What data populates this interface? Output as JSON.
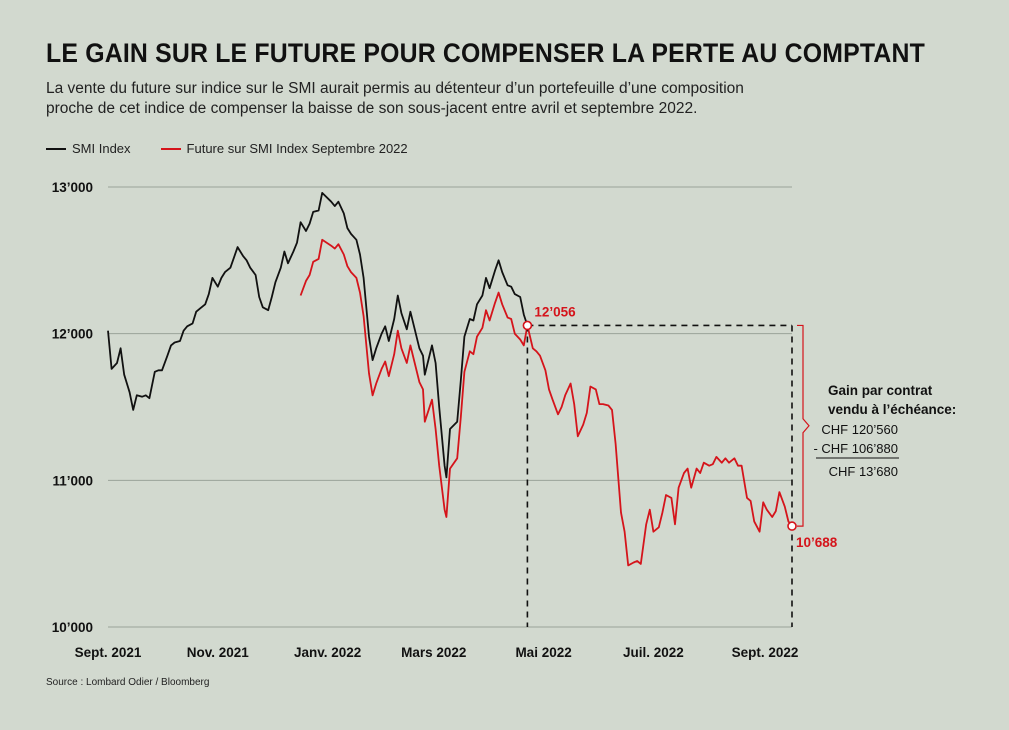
{
  "title": "LE GAIN SUR LE FUTURE POUR COMPENSER LA PERTE AU COMPTANT",
  "subtitle": "La vente du future sur indice sur le SMI aurait permis au détenteur d’un portefeuille d’une composition proche de cet indice de compenser la baisse de son sous-jacent entre avril et septembre 2022.",
  "source": "Source : Lombard Odier / Bloomberg",
  "colors": {
    "smi": "#111111",
    "future": "#d5141b",
    "grid": "#9aa39a",
    "background": "#d2d9cf"
  },
  "chart_data": {
    "type": "line",
    "title": "LE GAIN SUR LE FUTURE POUR COMPENSER LA PERTE AU COMPTANT",
    "xlabel": "",
    "ylabel": "",
    "ylim": [
      10000,
      13000
    ],
    "yticks": [
      10000,
      11000,
      12000,
      13000
    ],
    "ytick_labels": [
      "10’000",
      "11’000",
      "12’000",
      "13’000"
    ],
    "xticks": [
      "2021-09-01",
      "2021-11-01",
      "2022-01-01",
      "2022-03-01",
      "2022-05-01",
      "2022-07-01",
      "2022-09-01"
    ],
    "xtick_labels": [
      "Sept. 2021",
      "Nov. 2021",
      "Janv. 2022",
      "Mars 2022",
      "Mai 2022",
      "Juil. 2022",
      "Sept. 2022"
    ],
    "xlim": [
      "2021-09-01",
      "2022-09-16"
    ],
    "grid": true,
    "legend": "top-left",
    "series": [
      {
        "name": "SMI Index",
        "color": "#111111",
        "points": [
          [
            "2021-09-01",
            12020
          ],
          [
            "2021-09-03",
            11760
          ],
          [
            "2021-09-06",
            11800
          ],
          [
            "2021-09-08",
            11900
          ],
          [
            "2021-09-10",
            11720
          ],
          [
            "2021-09-13",
            11600
          ],
          [
            "2021-09-15",
            11480
          ],
          [
            "2021-09-17",
            11580
          ],
          [
            "2021-09-20",
            11570
          ],
          [
            "2021-09-22",
            11580
          ],
          [
            "2021-09-24",
            11560
          ],
          [
            "2021-09-27",
            11740
          ],
          [
            "2021-09-29",
            11750
          ],
          [
            "2021-10-01",
            11750
          ],
          [
            "2021-10-04",
            11850
          ],
          [
            "2021-10-06",
            11920
          ],
          [
            "2021-10-08",
            11940
          ],
          [
            "2021-10-11",
            11950
          ],
          [
            "2021-10-13",
            12020
          ],
          [
            "2021-10-15",
            12050
          ],
          [
            "2021-10-18",
            12070
          ],
          [
            "2021-10-20",
            12150
          ],
          [
            "2021-10-22",
            12170
          ],
          [
            "2021-10-25",
            12200
          ],
          [
            "2021-10-27",
            12270
          ],
          [
            "2021-10-29",
            12380
          ],
          [
            "2021-11-01",
            12320
          ],
          [
            "2021-11-03",
            12380
          ],
          [
            "2021-11-05",
            12420
          ],
          [
            "2021-11-08",
            12450
          ],
          [
            "2021-11-10",
            12520
          ],
          [
            "2021-11-12",
            12590
          ],
          [
            "2021-11-15",
            12530
          ],
          [
            "2021-11-17",
            12500
          ],
          [
            "2021-11-19",
            12450
          ],
          [
            "2021-11-22",
            12400
          ],
          [
            "2021-11-24",
            12250
          ],
          [
            "2021-11-26",
            12180
          ],
          [
            "2021-11-29",
            12160
          ],
          [
            "2021-12-01",
            12250
          ],
          [
            "2021-12-03",
            12350
          ],
          [
            "2021-12-06",
            12450
          ],
          [
            "2021-12-08",
            12560
          ],
          [
            "2021-12-10",
            12480
          ],
          [
            "2021-12-13",
            12560
          ],
          [
            "2021-12-15",
            12620
          ],
          [
            "2021-12-17",
            12760
          ],
          [
            "2021-12-20",
            12700
          ],
          [
            "2021-12-22",
            12750
          ],
          [
            "2021-12-24",
            12830
          ],
          [
            "2021-12-27",
            12840
          ],
          [
            "2021-12-29",
            12960
          ],
          [
            "2022-01-03",
            12900
          ],
          [
            "2022-01-05",
            12870
          ],
          [
            "2022-01-07",
            12900
          ],
          [
            "2022-01-10",
            12820
          ],
          [
            "2022-01-12",
            12720
          ],
          [
            "2022-01-14",
            12680
          ],
          [
            "2022-01-17",
            12640
          ],
          [
            "2022-01-19",
            12540
          ],
          [
            "2022-01-21",
            12380
          ],
          [
            "2022-01-24",
            11980
          ],
          [
            "2022-01-26",
            11820
          ],
          [
            "2022-01-28",
            11900
          ],
          [
            "2022-01-31",
            12000
          ],
          [
            "2022-02-02",
            12050
          ],
          [
            "2022-02-04",
            11950
          ],
          [
            "2022-02-07",
            12100
          ],
          [
            "2022-02-09",
            12260
          ],
          [
            "2022-02-11",
            12140
          ],
          [
            "2022-02-14",
            12030
          ],
          [
            "2022-02-16",
            12150
          ],
          [
            "2022-02-18",
            12050
          ],
          [
            "2022-02-21",
            11900
          ],
          [
            "2022-02-23",
            11850
          ],
          [
            "2022-02-24",
            11720
          ],
          [
            "2022-02-28",
            11920
          ],
          [
            "2022-03-02",
            11800
          ],
          [
            "2022-03-04",
            11500
          ],
          [
            "2022-03-07",
            11100
          ],
          [
            "2022-03-08",
            11020
          ],
          [
            "2022-03-10",
            11350
          ],
          [
            "2022-03-14",
            11400
          ],
          [
            "2022-03-16",
            11680
          ],
          [
            "2022-03-18",
            11980
          ],
          [
            "2022-03-21",
            12100
          ],
          [
            "2022-03-23",
            12090
          ],
          [
            "2022-03-25",
            12200
          ],
          [
            "2022-03-28",
            12260
          ],
          [
            "2022-03-30",
            12380
          ],
          [
            "2022-04-01",
            12310
          ],
          [
            "2022-04-04",
            12430
          ],
          [
            "2022-04-06",
            12500
          ],
          [
            "2022-04-08",
            12420
          ],
          [
            "2022-04-11",
            12330
          ],
          [
            "2022-04-13",
            12320
          ],
          [
            "2022-04-15",
            12270
          ],
          [
            "2022-04-18",
            12250
          ],
          [
            "2022-04-20",
            12130
          ],
          [
            "2022-04-22",
            12056
          ]
        ]
      },
      {
        "name": "Future sur SMI Index Septembre 2022",
        "color": "#d5141b",
        "points": [
          [
            "2021-12-17",
            12260
          ],
          [
            "2021-12-20",
            12360
          ],
          [
            "2021-12-22",
            12400
          ],
          [
            "2021-12-24",
            12490
          ],
          [
            "2021-12-27",
            12510
          ],
          [
            "2021-12-29",
            12640
          ],
          [
            "2022-01-03",
            12600
          ],
          [
            "2022-01-05",
            12580
          ],
          [
            "2022-01-07",
            12610
          ],
          [
            "2022-01-10",
            12540
          ],
          [
            "2022-01-12",
            12460
          ],
          [
            "2022-01-14",
            12420
          ],
          [
            "2022-01-17",
            12380
          ],
          [
            "2022-01-19",
            12280
          ],
          [
            "2022-01-21",
            12120
          ],
          [
            "2022-01-24",
            11730
          ],
          [
            "2022-01-26",
            11580
          ],
          [
            "2022-01-28",
            11660
          ],
          [
            "2022-01-31",
            11760
          ],
          [
            "2022-02-02",
            11810
          ],
          [
            "2022-02-04",
            11710
          ],
          [
            "2022-02-07",
            11860
          ],
          [
            "2022-02-09",
            12020
          ],
          [
            "2022-02-11",
            11900
          ],
          [
            "2022-02-14",
            11800
          ],
          [
            "2022-02-16",
            11920
          ],
          [
            "2022-02-18",
            11820
          ],
          [
            "2022-02-21",
            11670
          ],
          [
            "2022-02-23",
            11620
          ],
          [
            "2022-02-24",
            11400
          ],
          [
            "2022-02-28",
            11550
          ],
          [
            "2022-03-02",
            11350
          ],
          [
            "2022-03-04",
            11100
          ],
          [
            "2022-03-07",
            10800
          ],
          [
            "2022-03-08",
            10750
          ],
          [
            "2022-03-10",
            11080
          ],
          [
            "2022-03-14",
            11150
          ],
          [
            "2022-03-16",
            11430
          ],
          [
            "2022-03-18",
            11740
          ],
          [
            "2022-03-21",
            11880
          ],
          [
            "2022-03-23",
            11860
          ],
          [
            "2022-03-25",
            11980
          ],
          [
            "2022-03-28",
            12040
          ],
          [
            "2022-03-30",
            12160
          ],
          [
            "2022-04-01",
            12090
          ],
          [
            "2022-04-04",
            12210
          ],
          [
            "2022-04-06",
            12280
          ],
          [
            "2022-04-08",
            12200
          ],
          [
            "2022-04-11",
            12110
          ],
          [
            "2022-04-13",
            12100
          ],
          [
            "2022-04-15",
            12000
          ],
          [
            "2022-04-18",
            11960
          ],
          [
            "2022-04-20",
            11920
          ],
          [
            "2022-04-22",
            12056
          ],
          [
            "2022-04-25",
            11900
          ],
          [
            "2022-04-27",
            11880
          ],
          [
            "2022-04-29",
            11850
          ],
          [
            "2022-05-02",
            11750
          ],
          [
            "2022-05-04",
            11620
          ],
          [
            "2022-05-06",
            11550
          ],
          [
            "2022-05-09",
            11450
          ],
          [
            "2022-05-11",
            11500
          ],
          [
            "2022-05-13",
            11580
          ],
          [
            "2022-05-16",
            11660
          ],
          [
            "2022-05-18",
            11520
          ],
          [
            "2022-05-20",
            11300
          ],
          [
            "2022-05-23",
            11380
          ],
          [
            "2022-05-25",
            11460
          ],
          [
            "2022-05-27",
            11640
          ],
          [
            "2022-05-30",
            11620
          ],
          [
            "2022-06-01",
            11520
          ],
          [
            "2022-06-03",
            11520
          ],
          [
            "2022-06-06",
            11510
          ],
          [
            "2022-06-08",
            11480
          ],
          [
            "2022-06-10",
            11250
          ],
          [
            "2022-06-13",
            10780
          ],
          [
            "2022-06-15",
            10650
          ],
          [
            "2022-06-17",
            10420
          ],
          [
            "2022-06-20",
            10440
          ],
          [
            "2022-06-22",
            10450
          ],
          [
            "2022-06-24",
            10430
          ],
          [
            "2022-06-27",
            10700
          ],
          [
            "2022-06-29",
            10800
          ],
          [
            "2022-07-01",
            10650
          ],
          [
            "2022-07-04",
            10680
          ],
          [
            "2022-07-06",
            10780
          ],
          [
            "2022-07-08",
            10900
          ],
          [
            "2022-07-11",
            10880
          ],
          [
            "2022-07-13",
            10700
          ],
          [
            "2022-07-15",
            10950
          ],
          [
            "2022-07-18",
            11050
          ],
          [
            "2022-07-20",
            11080
          ],
          [
            "2022-07-22",
            10950
          ],
          [
            "2022-07-25",
            11080
          ],
          [
            "2022-07-27",
            11050
          ],
          [
            "2022-07-29",
            11120
          ],
          [
            "2022-08-01",
            11100
          ],
          [
            "2022-08-03",
            11110
          ],
          [
            "2022-08-05",
            11160
          ],
          [
            "2022-08-08",
            11120
          ],
          [
            "2022-08-10",
            11150
          ],
          [
            "2022-08-12",
            11120
          ],
          [
            "2022-08-15",
            11150
          ],
          [
            "2022-08-17",
            11100
          ],
          [
            "2022-08-19",
            11100
          ],
          [
            "2022-08-22",
            10880
          ],
          [
            "2022-08-24",
            10860
          ],
          [
            "2022-08-26",
            10720
          ],
          [
            "2022-08-29",
            10650
          ],
          [
            "2022-08-31",
            10850
          ],
          [
            "2022-09-02",
            10800
          ],
          [
            "2022-09-05",
            10750
          ],
          [
            "2022-09-07",
            10790
          ],
          [
            "2022-09-09",
            10920
          ],
          [
            "2022-09-12",
            10820
          ],
          [
            "2022-09-14",
            10720
          ],
          [
            "2022-09-16",
            10688
          ]
        ]
      }
    ],
    "annotations": {
      "start_value": 12056,
      "start_label": "12’056",
      "end_value": 10688,
      "end_label": "10’688",
      "start_date": "2022-04-22",
      "end_date": "2022-09-16",
      "gain_title_line1": "Gain par contrat",
      "gain_title_line2": "vendu à l’échéance:",
      "gain_line1": "CHF 120’560",
      "gain_line2": "- CHF 106’880",
      "gain_result": "CHF 13’680"
    }
  }
}
